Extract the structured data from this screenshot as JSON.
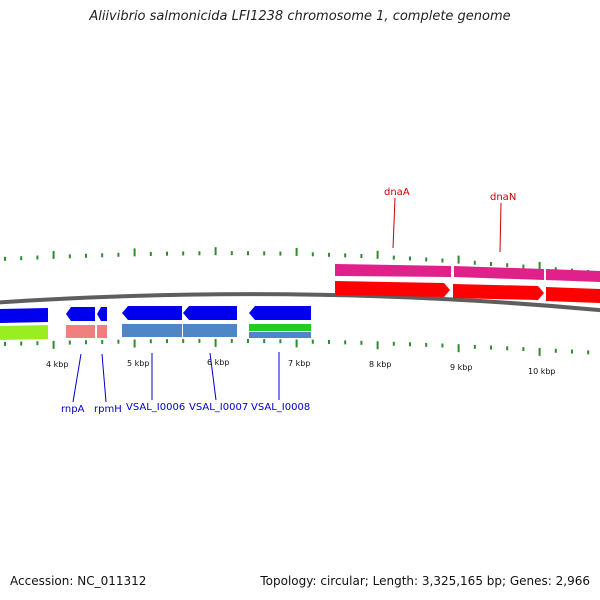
{
  "title": "Aliivibrio salmonicida LFI1238 chromosome 1, complete genome",
  "footer": {
    "accession": "Accession: NC_011312",
    "summary": "Topology: circular; Length: 3,325,165 bp; Genes: 2,966"
  },
  "colors": {
    "backbone": "#7a7a7a",
    "tick": "#2e8b2e",
    "label_red": "#cc0000",
    "label_blue": "#0000cc",
    "pink": "#e0218a",
    "red": "#ff0000",
    "blue": "#0000ee",
    "steel_blue": "#4f86c6",
    "light_pink": "#f08080",
    "lime": "#99ee22",
    "green": "#22cc22"
  },
  "scale": {
    "unit": "kbp",
    "labels": [
      {
        "kbp": 4,
        "text": "4 kbp"
      },
      {
        "kbp": 5,
        "text": "5 kbp"
      },
      {
        "kbp": 6,
        "text": "6 kbp"
      },
      {
        "kbp": 7,
        "text": "7 kbp"
      },
      {
        "kbp": 8,
        "text": "8 kbp"
      },
      {
        "kbp": 9,
        "text": "9 kbp"
      },
      {
        "kbp": 10,
        "text": "10 kbp"
      }
    ]
  },
  "gene_labels": [
    {
      "text": "dnaA",
      "color": "red"
    },
    {
      "text": "dnaN",
      "color": "red"
    },
    {
      "text": "rnpA",
      "color": "blue"
    },
    {
      "text": "rpmH",
      "color": "blue"
    },
    {
      "text": "VSAL_I0006",
      "color": "blue"
    },
    {
      "text": "VSAL_I0007",
      "color": "blue"
    },
    {
      "text": "VSAL_I0008",
      "color": "blue"
    }
  ]
}
